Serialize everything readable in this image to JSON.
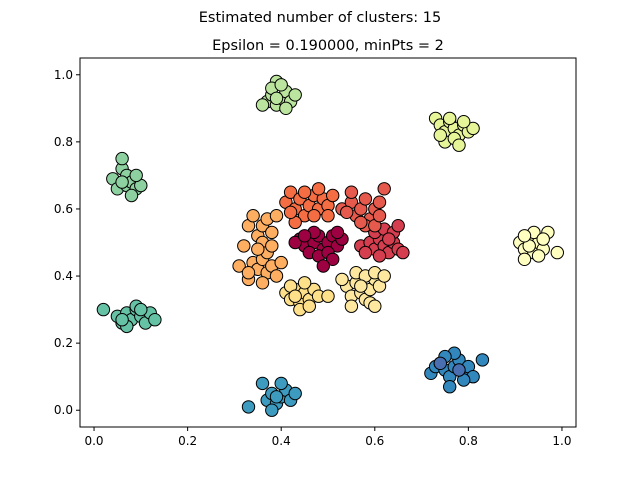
{
  "chart_data": {
    "type": "scatter",
    "suptitle": "Estimated number of clusters: 15",
    "title": "Epsilon = 0.190000, minPts = 2",
    "xlabel": "",
    "ylabel": "",
    "xlim": [
      -0.03,
      1.03
    ],
    "ylim": [
      -0.05,
      1.05
    ],
    "x_ticks": [
      {
        "value": 0.0,
        "label": "0.0"
      },
      {
        "value": 0.2,
        "label": "0.2"
      },
      {
        "value": 0.4,
        "label": "0.4"
      },
      {
        "value": 0.6,
        "label": "0.6"
      },
      {
        "value": 0.8,
        "label": "0.8"
      },
      {
        "value": 1.0,
        "label": "1.0"
      }
    ],
    "y_ticks": [
      {
        "value": 0.0,
        "label": "0.0"
      },
      {
        "value": 0.2,
        "label": "0.2"
      },
      {
        "value": 0.4,
        "label": "0.4"
      },
      {
        "value": 0.6,
        "label": "0.6"
      },
      {
        "value": 0.8,
        "label": "0.8"
      },
      {
        "value": 1.0,
        "label": "1.0"
      }
    ],
    "grid": false,
    "marker_edge_color": "#000000",
    "clusters": [
      {
        "color": "#9e0142",
        "points": [
          [
            0.44,
            0.51
          ],
          [
            0.45,
            0.49
          ],
          [
            0.47,
            0.5
          ],
          [
            0.48,
            0.52
          ],
          [
            0.49,
            0.48
          ],
          [
            0.5,
            0.5
          ],
          [
            0.51,
            0.52
          ],
          [
            0.52,
            0.49
          ],
          [
            0.46,
            0.47
          ],
          [
            0.48,
            0.46
          ],
          [
            0.5,
            0.47
          ],
          [
            0.53,
            0.51
          ],
          [
            0.43,
            0.5
          ],
          [
            0.47,
            0.53
          ],
          [
            0.51,
            0.45
          ],
          [
            0.49,
            0.43
          ],
          [
            0.45,
            0.52
          ],
          [
            0.52,
            0.53
          ]
        ]
      },
      {
        "color": "#d53e4f",
        "points": [
          [
            0.57,
            0.49
          ],
          [
            0.59,
            0.5
          ],
          [
            0.6,
            0.48
          ],
          [
            0.61,
            0.51
          ],
          [
            0.62,
            0.49
          ],
          [
            0.63,
            0.47
          ],
          [
            0.64,
            0.5
          ],
          [
            0.65,
            0.48
          ],
          [
            0.66,
            0.47
          ],
          [
            0.6,
            0.53
          ],
          [
            0.62,
            0.54
          ],
          [
            0.64,
            0.53
          ],
          [
            0.65,
            0.55
          ],
          [
            0.63,
            0.51
          ],
          [
            0.61,
            0.46
          ],
          [
            0.58,
            0.47
          ]
        ]
      },
      {
        "color": "#e55a4c",
        "points": [
          [
            0.53,
            0.6
          ],
          [
            0.55,
            0.62
          ],
          [
            0.56,
            0.58
          ],
          [
            0.57,
            0.6
          ],
          [
            0.58,
            0.63
          ],
          [
            0.59,
            0.57
          ],
          [
            0.6,
            0.6
          ],
          [
            0.61,
            0.62
          ],
          [
            0.62,
            0.66
          ],
          [
            0.55,
            0.65
          ],
          [
            0.58,
            0.55
          ],
          [
            0.6,
            0.55
          ],
          [
            0.57,
            0.56
          ],
          [
            0.54,
            0.59
          ],
          [
            0.61,
            0.58
          ]
        ]
      },
      {
        "color": "#f46d43",
        "points": [
          [
            0.41,
            0.62
          ],
          [
            0.42,
            0.65
          ],
          [
            0.43,
            0.6
          ],
          [
            0.44,
            0.63
          ],
          [
            0.45,
            0.58
          ],
          [
            0.46,
            0.61
          ],
          [
            0.47,
            0.64
          ],
          [
            0.48,
            0.6
          ],
          [
            0.49,
            0.63
          ],
          [
            0.5,
            0.61
          ],
          [
            0.51,
            0.64
          ],
          [
            0.43,
            0.56
          ],
          [
            0.45,
            0.65
          ],
          [
            0.47,
            0.58
          ],
          [
            0.42,
            0.59
          ],
          [
            0.48,
            0.66
          ],
          [
            0.5,
            0.58
          ]
        ]
      },
      {
        "color": "#fdae61",
        "points": [
          [
            0.33,
            0.55
          ],
          [
            0.34,
            0.58
          ],
          [
            0.35,
            0.52
          ],
          [
            0.36,
            0.55
          ],
          [
            0.37,
            0.57
          ],
          [
            0.38,
            0.53
          ],
          [
            0.39,
            0.58
          ],
          [
            0.36,
            0.5
          ],
          [
            0.34,
            0.44
          ],
          [
            0.35,
            0.42
          ],
          [
            0.36,
            0.45
          ],
          [
            0.37,
            0.41
          ],
          [
            0.38,
            0.43
          ],
          [
            0.39,
            0.4
          ],
          [
            0.33,
            0.39
          ],
          [
            0.36,
            0.38
          ],
          [
            0.31,
            0.43
          ],
          [
            0.32,
            0.49
          ],
          [
            0.37,
            0.47
          ],
          [
            0.38,
            0.49
          ],
          [
            0.35,
            0.48
          ],
          [
            0.4,
            0.44
          ],
          [
            0.33,
            0.41
          ]
        ]
      },
      {
        "color": "#fee08b",
        "points": [
          [
            0.41,
            0.35
          ],
          [
            0.42,
            0.33
          ],
          [
            0.43,
            0.36
          ],
          [
            0.44,
            0.32
          ],
          [
            0.45,
            0.35
          ],
          [
            0.46,
            0.33
          ],
          [
            0.47,
            0.36
          ],
          [
            0.48,
            0.34
          ],
          [
            0.45,
            0.38
          ],
          [
            0.44,
            0.3
          ],
          [
            0.42,
            0.37
          ],
          [
            0.5,
            0.34
          ],
          [
            0.46,
            0.31
          ],
          [
            0.43,
            0.34
          ]
        ]
      },
      {
        "color": "#fee8a0",
        "points": [
          [
            0.54,
            0.37
          ],
          [
            0.55,
            0.34
          ],
          [
            0.56,
            0.38
          ],
          [
            0.57,
            0.35
          ],
          [
            0.58,
            0.33
          ],
          [
            0.59,
            0.36
          ],
          [
            0.6,
            0.39
          ],
          [
            0.61,
            0.37
          ],
          [
            0.56,
            0.41
          ],
          [
            0.58,
            0.4
          ],
          [
            0.6,
            0.41
          ],
          [
            0.62,
            0.4
          ],
          [
            0.55,
            0.31
          ],
          [
            0.59,
            0.32
          ],
          [
            0.57,
            0.37
          ],
          [
            0.53,
            0.39
          ],
          [
            0.6,
            0.31
          ]
        ]
      },
      {
        "color": "#ffffbf",
        "points": [
          [
            0.91,
            0.5
          ],
          [
            0.92,
            0.48
          ],
          [
            0.93,
            0.51
          ],
          [
            0.94,
            0.47
          ],
          [
            0.95,
            0.5
          ],
          [
            0.96,
            0.48
          ],
          [
            0.92,
            0.45
          ],
          [
            0.94,
            0.53
          ],
          [
            0.95,
            0.46
          ],
          [
            0.97,
            0.53
          ],
          [
            0.99,
            0.47
          ],
          [
            0.93,
            0.49
          ],
          [
            0.96,
            0.51
          ],
          [
            0.92,
            0.52
          ]
        ]
      },
      {
        "color": "#e6f598",
        "points": [
          [
            0.73,
            0.87
          ],
          [
            0.74,
            0.85
          ],
          [
            0.75,
            0.83
          ],
          [
            0.76,
            0.86
          ],
          [
            0.77,
            0.84
          ],
          [
            0.78,
            0.82
          ],
          [
            0.79,
            0.85
          ],
          [
            0.8,
            0.83
          ],
          [
            0.81,
            0.84
          ],
          [
            0.75,
            0.8
          ],
          [
            0.77,
            0.81
          ],
          [
            0.78,
            0.79
          ],
          [
            0.74,
            0.82
          ],
          [
            0.76,
            0.87
          ],
          [
            0.79,
            0.86
          ]
        ]
      },
      {
        "color": "#bbe49f",
        "points": [
          [
            0.37,
            0.92
          ],
          [
            0.38,
            0.94
          ],
          [
            0.39,
            0.91
          ],
          [
            0.4,
            0.93
          ],
          [
            0.41,
            0.95
          ],
          [
            0.42,
            0.92
          ],
          [
            0.43,
            0.94
          ],
          [
            0.39,
            0.98
          ],
          [
            0.38,
            0.96
          ],
          [
            0.36,
            0.91
          ],
          [
            0.4,
            0.97
          ],
          [
            0.41,
            0.9
          ],
          [
            0.39,
            0.93
          ]
        ]
      },
      {
        "color": "#8ed1a0",
        "points": [
          [
            0.04,
            0.69
          ],
          [
            0.05,
            0.66
          ],
          [
            0.06,
            0.72
          ],
          [
            0.07,
            0.7
          ],
          [
            0.07,
            0.67
          ],
          [
            0.08,
            0.68
          ],
          [
            0.09,
            0.66
          ],
          [
            0.1,
            0.67
          ],
          [
            0.06,
            0.75
          ],
          [
            0.08,
            0.64
          ],
          [
            0.06,
            0.68
          ],
          [
            0.09,
            0.7
          ]
        ]
      },
      {
        "color": "#66c2a5",
        "points": [
          [
            0.02,
            0.3
          ],
          [
            0.05,
            0.28
          ],
          [
            0.06,
            0.26
          ],
          [
            0.07,
            0.29
          ],
          [
            0.08,
            0.27
          ],
          [
            0.09,
            0.3
          ],
          [
            0.1,
            0.28
          ],
          [
            0.11,
            0.26
          ],
          [
            0.12,
            0.29
          ],
          [
            0.13,
            0.27
          ],
          [
            0.07,
            0.25
          ],
          [
            0.09,
            0.31
          ],
          [
            0.06,
            0.27
          ],
          [
            0.1,
            0.3
          ]
        ]
      },
      {
        "color": "#3288bd",
        "points": [
          [
            0.72,
            0.11
          ],
          [
            0.73,
            0.13
          ],
          [
            0.74,
            0.14
          ],
          [
            0.75,
            0.12
          ],
          [
            0.76,
            0.1
          ],
          [
            0.77,
            0.13
          ],
          [
            0.78,
            0.15
          ],
          [
            0.79,
            0.11
          ],
          [
            0.8,
            0.13
          ],
          [
            0.81,
            0.1
          ],
          [
            0.83,
            0.15
          ],
          [
            0.76,
            0.07
          ],
          [
            0.77,
            0.17
          ],
          [
            0.79,
            0.09
          ],
          [
            0.75,
            0.16
          ]
        ]
      },
      {
        "color": "#3d9bbf",
        "points": [
          [
            0.33,
            0.01
          ],
          [
            0.36,
            0.08
          ],
          [
            0.37,
            0.03
          ],
          [
            0.38,
            0.05
          ],
          [
            0.39,
            0.02
          ],
          [
            0.4,
            0.04
          ],
          [
            0.41,
            0.06
          ],
          [
            0.42,
            0.03
          ],
          [
            0.38,
            0.0
          ],
          [
            0.4,
            0.08
          ],
          [
            0.43,
            0.05
          ],
          [
            0.39,
            0.04
          ]
        ]
      },
      {
        "color": "#4a6fb0",
        "points": [
          [
            0.74,
            0.14
          ],
          [
            0.78,
            0.12
          ]
        ]
      }
    ]
  }
}
